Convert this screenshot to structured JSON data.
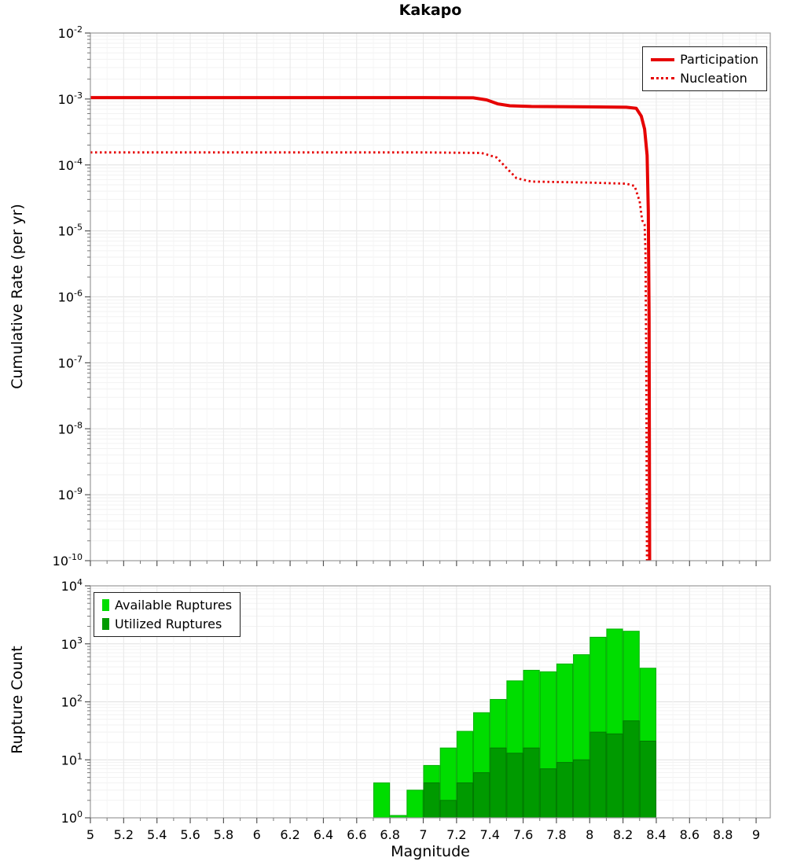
{
  "figure_title": "Kakapo",
  "chart_data": [
    {
      "type": "line",
      "title": "Kakapo",
      "ylabel": "Cumulative Rate (per yr)",
      "x_range": [
        5,
        9.085
      ],
      "y_scale": "log",
      "y_exp_range": [
        -10,
        -2
      ],
      "y_tick_exponents": [
        -2,
        -3,
        -4,
        -5,
        -6,
        -7,
        -8,
        -9,
        -10
      ],
      "x_ticks": [
        5,
        5.2,
        5.4,
        5.6,
        5.8,
        6,
        6.2,
        6.4,
        6.6,
        6.8,
        7,
        7.2,
        7.4,
        7.6,
        7.8,
        8,
        8.2,
        8.4,
        8.6,
        8.8,
        9
      ],
      "x_tick_labels_visible": false,
      "legend_position": "top-right",
      "series": [
        {
          "name": "Participation",
          "style": "solid",
          "color": "#e60000",
          "width": 4,
          "points": [
            [
              5.0,
              0.00105
            ],
            [
              6.0,
              0.00105
            ],
            [
              7.0,
              0.00105
            ],
            [
              7.3,
              0.00104
            ],
            [
              7.38,
              0.00097
            ],
            [
              7.45,
              0.00084
            ],
            [
              7.52,
              0.00079
            ],
            [
              7.65,
              0.00077
            ],
            [
              8.0,
              0.00076
            ],
            [
              8.22,
              0.00075
            ],
            [
              8.28,
              0.00072
            ],
            [
              8.31,
              0.00055
            ],
            [
              8.33,
              0.00035
            ],
            [
              8.345,
              0.00014
            ],
            [
              8.352,
              2e-05
            ],
            [
              8.357,
              5e-07
            ],
            [
              8.36,
              1e-10
            ]
          ]
        },
        {
          "name": "Nucleation",
          "style": "dotted",
          "color": "#e60000",
          "width": 2.8,
          "points": [
            [
              5.0,
              0.000155
            ],
            [
              6.0,
              0.000155
            ],
            [
              7.0,
              0.000155
            ],
            [
              7.35,
              0.000152
            ],
            [
              7.44,
              0.00013
            ],
            [
              7.5,
              9e-05
            ],
            [
              7.56,
              6.3e-05
            ],
            [
              7.65,
              5.6e-05
            ],
            [
              8.0,
              5.4e-05
            ],
            [
              8.22,
              5.2e-05
            ],
            [
              8.27,
              4.8e-05
            ],
            [
              8.3,
              2.8e-05
            ],
            [
              8.315,
              1.45e-05
            ],
            [
              8.33,
              1.25e-05
            ],
            [
              8.335,
              5e-06
            ],
            [
              8.34,
              1e-07
            ],
            [
              8.344,
              1e-10
            ]
          ]
        }
      ]
    },
    {
      "type": "bar",
      "ylabel": "Rupture Count",
      "xlabel": "Magnitude",
      "x_range": [
        5,
        9.085
      ],
      "y_scale": "log",
      "y_exp_range": [
        0,
        4
      ],
      "y_tick_exponents": [
        4,
        3,
        2,
        1,
        0
      ],
      "x_ticks": [
        5,
        5.2,
        5.4,
        5.6,
        5.8,
        6,
        6.2,
        6.4,
        6.6,
        6.8,
        7,
        7.2,
        7.4,
        7.6,
        7.8,
        8,
        8.2,
        8.4,
        8.6,
        8.8,
        9
      ],
      "x_tick_labels_visible": true,
      "legend_position": "top-left",
      "bin_width": 0.1,
      "bins": [
        6.7,
        6.8,
        6.9,
        7.0,
        7.1,
        7.2,
        7.3,
        7.4,
        7.5,
        7.6,
        7.7,
        7.8,
        7.9,
        8.0,
        8.1,
        8.2,
        8.3
      ],
      "series": [
        {
          "name": "Available Ruptures",
          "color": "#00dd00",
          "edge": "#00b000",
          "values": [
            4,
            1,
            3,
            8,
            16,
            31,
            65,
            110,
            230,
            350,
            330,
            450,
            650,
            1300,
            1800,
            1650,
            380
          ]
        },
        {
          "name": "Utilized Ruptures",
          "color": "#009a00",
          "edge": "#007a00",
          "values": [
            0,
            0,
            0,
            4,
            2,
            4,
            6,
            16,
            13,
            16,
            7,
            9,
            10,
            30,
            28,
            47,
            21
          ]
        }
      ]
    }
  ]
}
